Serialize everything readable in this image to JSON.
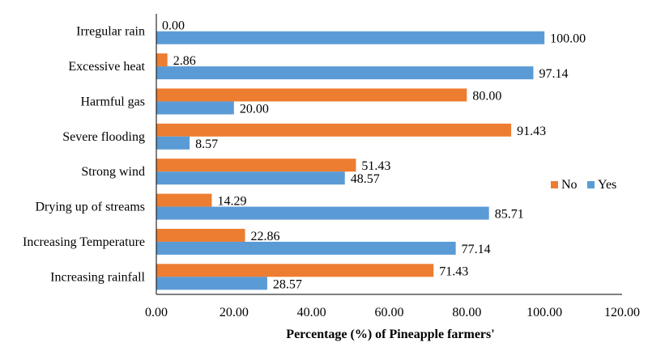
{
  "chart_data": {
    "type": "bar",
    "orientation": "horizontal",
    "title": "",
    "xlabel": "Percentage (%) of Pineapple farmers'",
    "ylabel": "",
    "xlim": [
      0,
      120
    ],
    "xticks": [
      "0.00",
      "20.00",
      "40.00",
      "60.00",
      "80.00",
      "100.00",
      "120.00"
    ],
    "grid": false,
    "legend_position": "right",
    "categories": [
      "Irregular rain",
      "Excessive heat",
      "Harmful gas",
      "Severe flooding",
      "Strong wind",
      "Drying up of streams",
      "Increasing Temperature",
      "Increasing rainfall"
    ],
    "series": [
      {
        "name": "No",
        "color": "#ED7D31",
        "values": [
          0.0,
          2.86,
          80.0,
          91.43,
          51.43,
          14.29,
          22.86,
          71.43
        ],
        "labels": [
          "0.00",
          "2.86",
          "80.00",
          "91.43",
          "51.43",
          "14.29",
          "22.86",
          "71.43"
        ]
      },
      {
        "name": "Yes",
        "color": "#5B9BD5",
        "values": [
          100.0,
          97.14,
          20.0,
          8.57,
          48.57,
          85.71,
          77.14,
          28.57
        ],
        "labels": [
          "100.00",
          "97.14",
          "20.00",
          "8.57",
          "48.57",
          "85.71",
          "77.14",
          "28.57"
        ]
      }
    ]
  }
}
